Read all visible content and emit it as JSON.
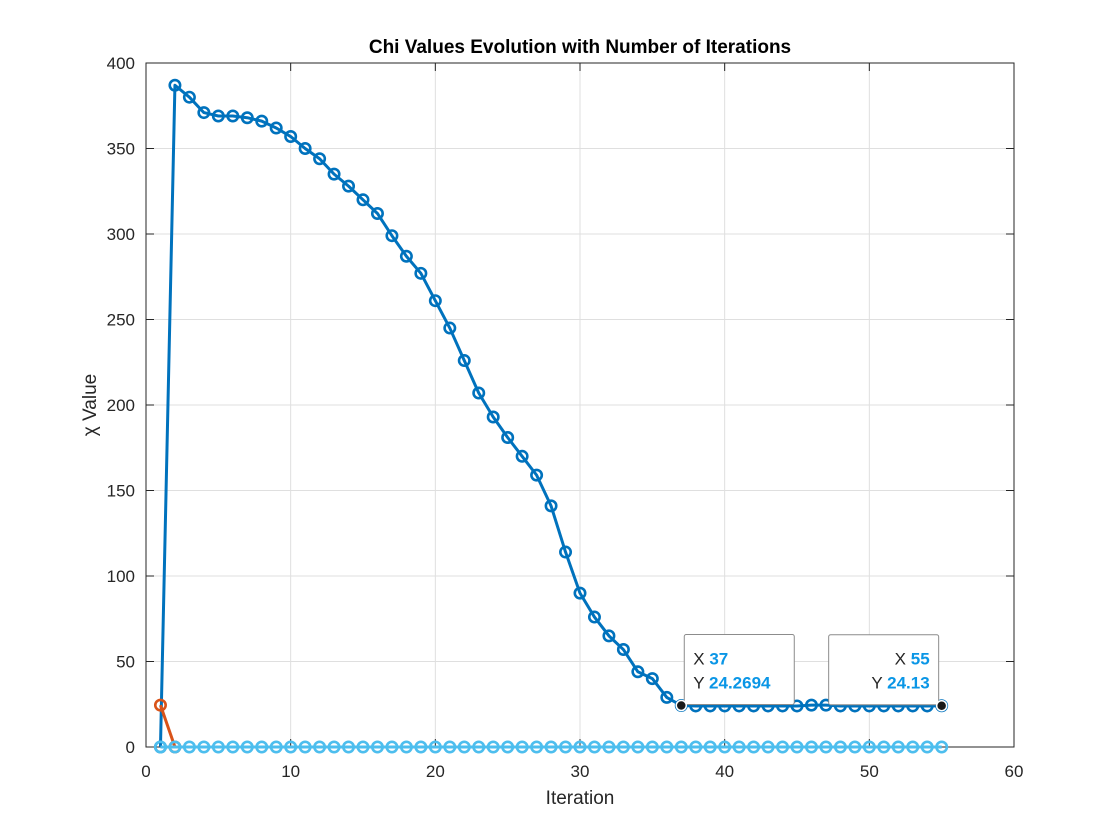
{
  "chart_data": {
    "type": "line",
    "title": "Chi Values Evolution with Number of Iterations",
    "xlabel": "Iteration",
    "ylabel": "χ Value",
    "xlim": [
      0,
      60
    ],
    "ylim": [
      0,
      400
    ],
    "xticks": [
      0,
      10,
      20,
      30,
      40,
      50,
      60
    ],
    "yticks": [
      0,
      50,
      100,
      150,
      200,
      250,
      300,
      350,
      400
    ],
    "grid": true,
    "legend": "none",
    "colors": {
      "main": "#0072BD",
      "second": "#D95319",
      "third": "#4DBEEE",
      "datatip_value": "#0A96E6",
      "grid": "#DFDFDF",
      "axis": "#262626"
    },
    "series": [
      {
        "color": "#0072BD",
        "x": [
          1,
          2,
          3,
          4,
          5,
          6,
          7,
          8,
          9,
          10,
          11,
          12,
          13,
          14,
          15,
          16,
          17,
          18,
          19,
          20,
          21,
          22,
          23,
          24,
          25,
          26,
          27,
          28,
          29,
          30,
          31,
          32,
          33,
          34,
          35,
          36,
          37,
          38,
          39,
          40,
          41,
          42,
          43,
          44,
          45,
          46,
          47,
          48,
          49,
          50,
          51,
          52,
          53,
          54,
          55
        ],
        "y": [
          0,
          387,
          380,
          371,
          369,
          369,
          368,
          366,
          362,
          357,
          350,
          344,
          335,
          328,
          320,
          312,
          299,
          287,
          277,
          261,
          245,
          226,
          207,
          193,
          181,
          170,
          159,
          141,
          114,
          90,
          76,
          65,
          57,
          44,
          40,
          29,
          24.2694,
          24,
          24,
          24,
          24,
          24,
          24,
          24,
          24,
          24.5,
          24.5,
          24,
          24,
          24,
          24,
          24,
          24,
          24,
          24.13
        ]
      },
      {
        "color": "#D95319",
        "x": [
          1,
          2
        ],
        "y": [
          24.5,
          0
        ]
      },
      {
        "color": "#4DBEEE",
        "x": [
          1,
          2,
          3,
          4,
          5,
          6,
          7,
          8,
          9,
          10,
          11,
          12,
          13,
          14,
          15,
          16,
          17,
          18,
          19,
          20,
          21,
          22,
          23,
          24,
          25,
          26,
          27,
          28,
          29,
          30,
          31,
          32,
          33,
          34,
          35,
          36,
          37,
          38,
          39,
          40,
          41,
          42,
          43,
          44,
          45,
          46,
          47,
          48,
          49,
          50,
          51,
          52,
          53,
          54,
          55
        ],
        "y": [
          0,
          0,
          0,
          0,
          0,
          0,
          0,
          0,
          0,
          0,
          0,
          0,
          0,
          0,
          0,
          0,
          0,
          0,
          0,
          0,
          0,
          0,
          0,
          0,
          0,
          0,
          0,
          0,
          0,
          0,
          0,
          0,
          0,
          0,
          0,
          0,
          0,
          0,
          0,
          0,
          0,
          0,
          0,
          0,
          0,
          0,
          0,
          0,
          0,
          0,
          0,
          0,
          0,
          0,
          0
        ]
      }
    ],
    "datatips": [
      {
        "x": 37,
        "y": 24.2694,
        "x_label": "X",
        "y_label": "Y",
        "x_text": "37",
        "y_text": "24.2694",
        "align": "left"
      },
      {
        "x": 55,
        "y": 24.13,
        "x_label": "X",
        "y_label": "Y",
        "x_text": "55",
        "y_text": "24.13",
        "align": "right"
      }
    ]
  }
}
